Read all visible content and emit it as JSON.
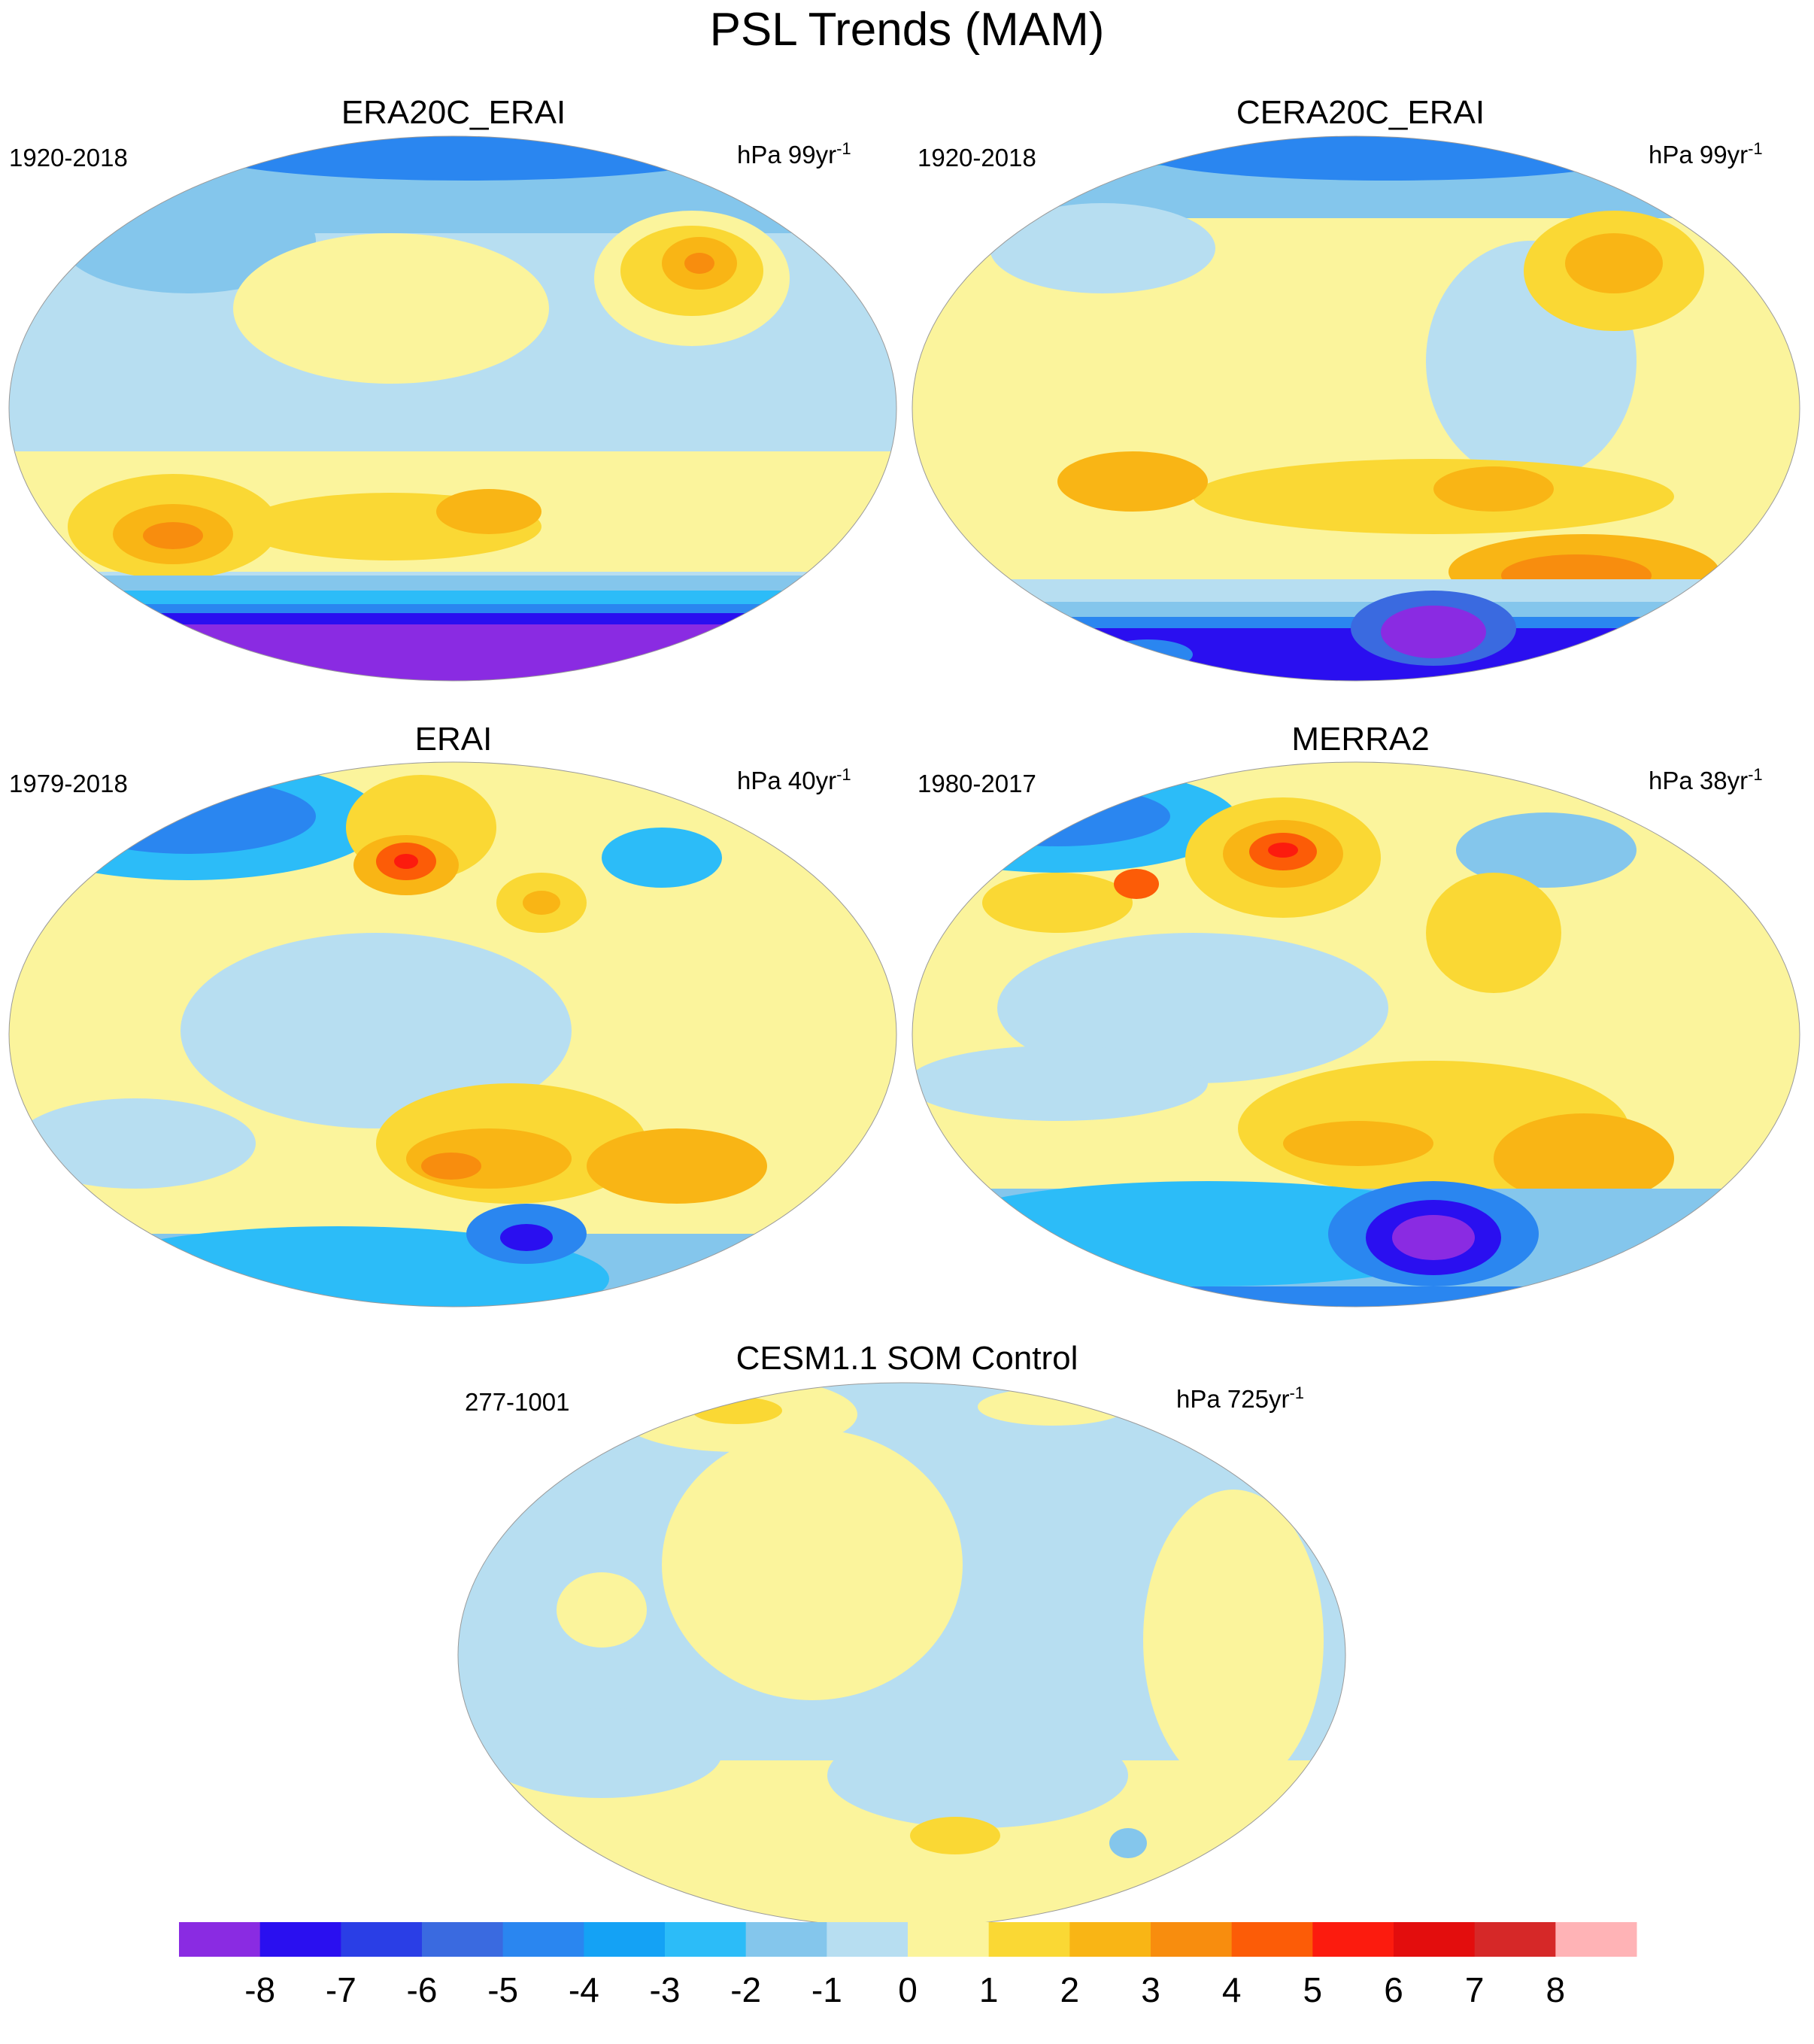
{
  "title": "PSL Trends (MAM)",
  "panels": [
    {
      "id": "era20c",
      "title": "ERA20C_ERAI",
      "period": "1920-2018",
      "units_prefix": "hPa 99yr",
      "units_exp": "-1"
    },
    {
      "id": "cera20c",
      "title": "CERA20C_ERAI",
      "period": "1920-2018",
      "units_prefix": "hPa 99yr",
      "units_exp": "-1"
    },
    {
      "id": "erai",
      "title": "ERAI",
      "period": "1979-2018",
      "units_prefix": "hPa 40yr",
      "units_exp": "-1"
    },
    {
      "id": "merra2",
      "title": "MERRA2",
      "period": "1980-2017",
      "units_prefix": "hPa 38yr",
      "units_exp": "-1"
    },
    {
      "id": "cesm",
      "title": "CESM1.1 SOM Control",
      "period": "277-1001",
      "units_prefix": "hPa 725yr",
      "units_exp": "-1"
    }
  ],
  "colorbar": {
    "labels": [
      "-8",
      "-7",
      "-6",
      "-5",
      "-4",
      "-3",
      "-2",
      "-1",
      "0",
      "1",
      "2",
      "3",
      "4",
      "5",
      "6",
      "7",
      "8"
    ],
    "colors": [
      "#8a2be2",
      "#2a0ff0",
      "#2a3ee6",
      "#3a6ae0",
      "#2a86f0",
      "#14a2f5",
      "#2cbcf8",
      "#84c6ec",
      "#b7def1",
      "#fbf49c",
      "#fad834",
      "#f9b515",
      "#f88d0e",
      "#fc5c07",
      "#fc1b0e",
      "#e30d0d",
      "#d62828",
      "#ffb3b6"
    ]
  }
}
